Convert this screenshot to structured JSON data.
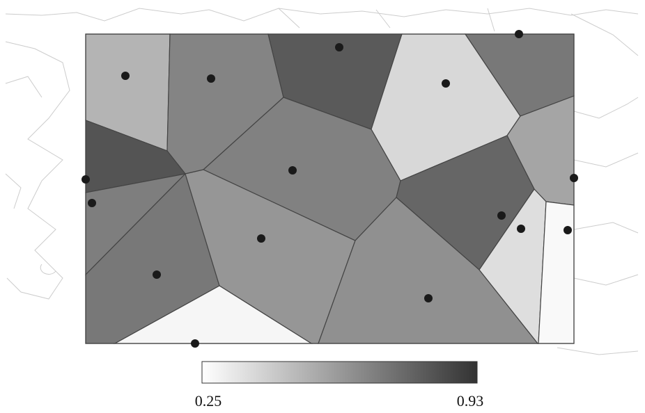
{
  "colorbar": {
    "min": 0.25,
    "max": 0.93,
    "low_color": "#ffffff",
    "high_color": "#333333"
  },
  "cells": {
    "values": [
      0.5,
      0.66,
      0.8,
      0.38,
      0.7,
      0.55,
      0.82,
      0.67,
      0.68,
      0.7,
      0.6,
      0.28,
      0.76,
      0.62,
      0.36,
      0.27
    ]
  }
}
